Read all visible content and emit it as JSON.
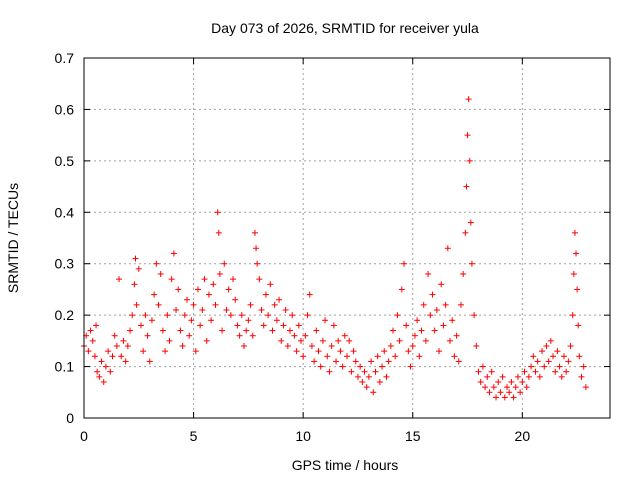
{
  "chart_data": {
    "type": "scatter",
    "title": "Day 073 of 2026, SRMTID for receiver yula",
    "xlabel": "GPS time / hours",
    "ylabel": "SRMTID / TECUs",
    "xlim": [
      0,
      24
    ],
    "ylim": [
      0,
      0.7
    ],
    "x_ticks": [
      0,
      5,
      10,
      15,
      20
    ],
    "x_tick_labels": [
      "0",
      "5",
      "10",
      "15",
      "20"
    ],
    "y_ticks": [
      0,
      0.1,
      0.2,
      0.3,
      0.4,
      0.5,
      0.6,
      0.7
    ],
    "y_tick_labels": [
      "0",
      "0.1",
      "0.2",
      "0.3",
      "0.4",
      "0.5",
      "0.6",
      "0.7"
    ],
    "grid": true,
    "marker": "+",
    "marker_color": "#ff0000",
    "series": [
      {
        "name": "SRMTID",
        "points": [
          [
            0.0,
            0.14
          ],
          [
            0.1,
            0.16
          ],
          [
            0.2,
            0.13
          ],
          [
            0.3,
            0.17
          ],
          [
            0.4,
            0.15
          ],
          [
            0.5,
            0.12
          ],
          [
            0.55,
            0.18
          ],
          [
            0.6,
            0.09
          ],
          [
            0.7,
            0.08
          ],
          [
            0.8,
            0.11
          ],
          [
            0.9,
            0.07
          ],
          [
            1.0,
            0.1
          ],
          [
            1.1,
            0.13
          ],
          [
            1.2,
            0.09
          ],
          [
            1.3,
            0.12
          ],
          [
            1.4,
            0.16
          ],
          [
            1.5,
            0.14
          ],
          [
            1.6,
            0.27
          ],
          [
            1.7,
            0.12
          ],
          [
            1.8,
            0.15
          ],
          [
            1.9,
            0.11
          ],
          [
            2.0,
            0.14
          ],
          [
            2.1,
            0.17
          ],
          [
            2.2,
            0.2
          ],
          [
            2.3,
            0.26
          ],
          [
            2.35,
            0.31
          ],
          [
            2.4,
            0.22
          ],
          [
            2.5,
            0.29
          ],
          [
            2.6,
            0.18
          ],
          [
            2.7,
            0.13
          ],
          [
            2.8,
            0.2
          ],
          [
            2.9,
            0.16
          ],
          [
            3.0,
            0.11
          ],
          [
            3.1,
            0.19
          ],
          [
            3.2,
            0.24
          ],
          [
            3.3,
            0.3
          ],
          [
            3.4,
            0.22
          ],
          [
            3.5,
            0.28
          ],
          [
            3.6,
            0.17
          ],
          [
            3.7,
            0.13
          ],
          [
            3.8,
            0.2
          ],
          [
            3.9,
            0.15
          ],
          [
            4.0,
            0.27
          ],
          [
            4.1,
            0.32
          ],
          [
            4.2,
            0.21
          ],
          [
            4.3,
            0.25
          ],
          [
            4.4,
            0.17
          ],
          [
            4.5,
            0.14
          ],
          [
            4.6,
            0.2
          ],
          [
            4.7,
            0.23
          ],
          [
            4.8,
            0.16
          ],
          [
            4.9,
            0.19
          ],
          [
            5.0,
            0.22
          ],
          [
            5.1,
            0.13
          ],
          [
            5.2,
            0.25
          ],
          [
            5.3,
            0.18
          ],
          [
            5.4,
            0.21
          ],
          [
            5.5,
            0.27
          ],
          [
            5.6,
            0.15
          ],
          [
            5.7,
            0.24
          ],
          [
            5.8,
            0.19
          ],
          [
            5.9,
            0.26
          ],
          [
            6.0,
            0.22
          ],
          [
            6.1,
            0.4
          ],
          [
            6.15,
            0.36
          ],
          [
            6.2,
            0.28
          ],
          [
            6.3,
            0.17
          ],
          [
            6.4,
            0.3
          ],
          [
            6.5,
            0.21
          ],
          [
            6.6,
            0.25
          ],
          [
            6.7,
            0.2
          ],
          [
            6.8,
            0.27
          ],
          [
            6.9,
            0.23
          ],
          [
            7.0,
            0.18
          ],
          [
            7.1,
            0.16
          ],
          [
            7.2,
            0.2
          ],
          [
            7.3,
            0.14
          ],
          [
            7.4,
            0.17
          ],
          [
            7.5,
            0.19
          ],
          [
            7.6,
            0.22
          ],
          [
            7.7,
            0.16
          ],
          [
            7.8,
            0.36
          ],
          [
            7.85,
            0.33
          ],
          [
            7.9,
            0.3
          ],
          [
            8.0,
            0.27
          ],
          [
            8.1,
            0.21
          ],
          [
            8.2,
            0.18
          ],
          [
            8.3,
            0.24
          ],
          [
            8.4,
            0.2
          ],
          [
            8.5,
            0.26
          ],
          [
            8.6,
            0.17
          ],
          [
            8.7,
            0.22
          ],
          [
            8.8,
            0.19
          ],
          [
            8.9,
            0.23
          ],
          [
            9.0,
            0.15
          ],
          [
            9.1,
            0.18
          ],
          [
            9.2,
            0.21
          ],
          [
            9.3,
            0.14
          ],
          [
            9.4,
            0.17
          ],
          [
            9.5,
            0.2
          ],
          [
            9.6,
            0.16
          ],
          [
            9.7,
            0.13
          ],
          [
            9.8,
            0.18
          ],
          [
            9.9,
            0.15
          ],
          [
            10.0,
            0.12
          ],
          [
            10.1,
            0.16
          ],
          [
            10.2,
            0.2
          ],
          [
            10.3,
            0.24
          ],
          [
            10.4,
            0.14
          ],
          [
            10.5,
            0.11
          ],
          [
            10.6,
            0.17
          ],
          [
            10.7,
            0.13
          ],
          [
            10.8,
            0.1
          ],
          [
            10.9,
            0.15
          ],
          [
            11.0,
            0.19
          ],
          [
            11.1,
            0.12
          ],
          [
            11.2,
            0.09
          ],
          [
            11.3,
            0.14
          ],
          [
            11.4,
            0.18
          ],
          [
            11.5,
            0.11
          ],
          [
            11.6,
            0.15
          ],
          [
            11.7,
            0.13
          ],
          [
            11.8,
            0.1
          ],
          [
            11.9,
            0.16
          ],
          [
            12.0,
            0.12
          ],
          [
            12.1,
            0.15
          ],
          [
            12.2,
            0.09
          ],
          [
            12.3,
            0.13
          ],
          [
            12.4,
            0.11
          ],
          [
            12.5,
            0.08
          ],
          [
            12.6,
            0.1
          ],
          [
            12.7,
            0.07
          ],
          [
            12.8,
            0.09
          ],
          [
            12.9,
            0.06
          ],
          [
            13.0,
            0.08
          ],
          [
            13.1,
            0.11
          ],
          [
            13.2,
            0.05
          ],
          [
            13.3,
            0.09
          ],
          [
            13.4,
            0.12
          ],
          [
            13.5,
            0.07
          ],
          [
            13.6,
            0.1
          ],
          [
            13.7,
            0.13
          ],
          [
            13.8,
            0.08
          ],
          [
            13.9,
            0.11
          ],
          [
            14.0,
            0.14
          ],
          [
            14.1,
            0.17
          ],
          [
            14.2,
            0.12
          ],
          [
            14.3,
            0.2
          ],
          [
            14.4,
            0.15
          ],
          [
            14.5,
            0.25
          ],
          [
            14.6,
            0.3
          ],
          [
            14.7,
            0.18
          ],
          [
            14.8,
            0.13
          ],
          [
            14.9,
            0.1
          ],
          [
            15.0,
            0.14
          ],
          [
            15.1,
            0.16
          ],
          [
            15.2,
            0.19
          ],
          [
            15.3,
            0.12
          ],
          [
            15.4,
            0.17
          ],
          [
            15.5,
            0.22
          ],
          [
            15.6,
            0.15
          ],
          [
            15.7,
            0.28
          ],
          [
            15.8,
            0.2
          ],
          [
            15.9,
            0.24
          ],
          [
            16.0,
            0.17
          ],
          [
            16.1,
            0.21
          ],
          [
            16.2,
            0.13
          ],
          [
            16.3,
            0.26
          ],
          [
            16.4,
            0.18
          ],
          [
            16.5,
            0.22
          ],
          [
            16.6,
            0.33
          ],
          [
            16.7,
            0.15
          ],
          [
            16.8,
            0.19
          ],
          [
            16.9,
            0.12
          ],
          [
            17.0,
            0.16
          ],
          [
            17.1,
            0.11
          ],
          [
            17.2,
            0.22
          ],
          [
            17.3,
            0.28
          ],
          [
            17.4,
            0.36
          ],
          [
            17.45,
            0.45
          ],
          [
            17.5,
            0.55
          ],
          [
            17.55,
            0.62
          ],
          [
            17.6,
            0.5
          ],
          [
            17.65,
            0.38
          ],
          [
            17.7,
            0.3
          ],
          [
            17.8,
            0.2
          ],
          [
            17.9,
            0.14
          ],
          [
            18.0,
            0.09
          ],
          [
            18.1,
            0.07
          ],
          [
            18.2,
            0.1
          ],
          [
            18.3,
            0.06
          ],
          [
            18.4,
            0.08
          ],
          [
            18.5,
            0.05
          ],
          [
            18.6,
            0.09
          ],
          [
            18.7,
            0.06
          ],
          [
            18.8,
            0.04
          ],
          [
            18.9,
            0.07
          ],
          [
            19.0,
            0.05
          ],
          [
            19.1,
            0.08
          ],
          [
            19.2,
            0.04
          ],
          [
            19.3,
            0.06
          ],
          [
            19.4,
            0.05
          ],
          [
            19.5,
            0.07
          ],
          [
            19.6,
            0.04
          ],
          [
            19.7,
            0.06
          ],
          [
            19.8,
            0.08
          ],
          [
            19.9,
            0.05
          ],
          [
            20.0,
            0.07
          ],
          [
            20.1,
            0.09
          ],
          [
            20.2,
            0.06
          ],
          [
            20.3,
            0.08
          ],
          [
            20.4,
            0.1
          ],
          [
            20.5,
            0.12
          ],
          [
            20.6,
            0.09
          ],
          [
            20.7,
            0.11
          ],
          [
            20.8,
            0.08
          ],
          [
            20.9,
            0.13
          ],
          [
            21.0,
            0.1
          ],
          [
            21.1,
            0.14
          ],
          [
            21.2,
            0.11
          ],
          [
            21.3,
            0.15
          ],
          [
            21.4,
            0.12
          ],
          [
            21.5,
            0.09
          ],
          [
            21.6,
            0.13
          ],
          [
            21.7,
            0.1
          ],
          [
            21.8,
            0.08
          ],
          [
            21.9,
            0.12
          ],
          [
            22.0,
            0.09
          ],
          [
            22.1,
            0.11
          ],
          [
            22.2,
            0.14
          ],
          [
            22.3,
            0.2
          ],
          [
            22.35,
            0.28
          ],
          [
            22.4,
            0.36
          ],
          [
            22.45,
            0.32
          ],
          [
            22.5,
            0.25
          ],
          [
            22.55,
            0.18
          ],
          [
            22.6,
            0.12
          ],
          [
            22.7,
            0.08
          ],
          [
            22.8,
            0.1
          ],
          [
            22.9,
            0.06
          ]
        ]
      }
    ]
  }
}
